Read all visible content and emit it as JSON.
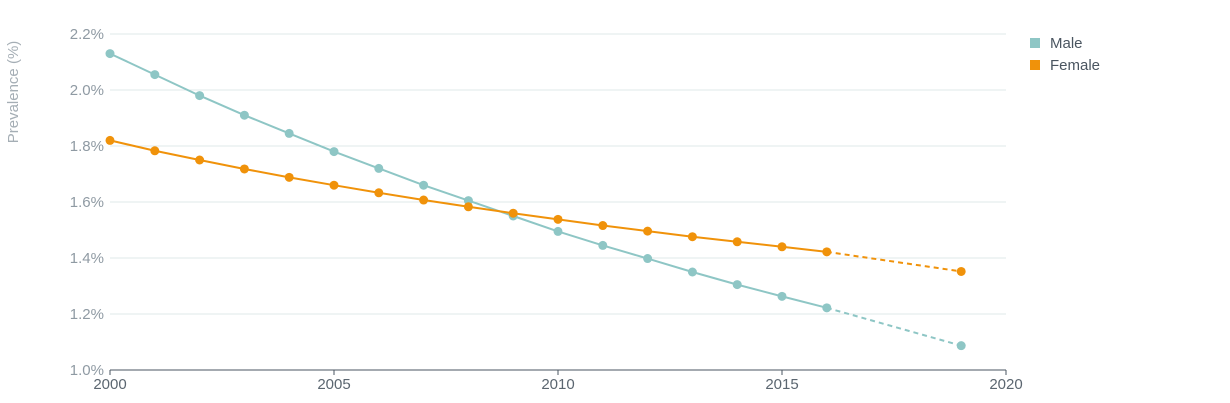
{
  "chart_data": {
    "type": "line",
    "ylabel": "Prevalence (%)",
    "xlim": [
      2000,
      2020
    ],
    "ylim": [
      1.0,
      2.2
    ],
    "x_ticks": [
      2000,
      2005,
      2010,
      2015,
      2020
    ],
    "y_ticks": [
      1.0,
      1.2,
      1.4,
      1.6,
      1.8,
      2.0,
      2.2
    ],
    "y_tick_labels": [
      "1.0%",
      "1.2%",
      "1.4%",
      "1.6%",
      "1.8%",
      "2.0%",
      "2.2%"
    ],
    "grid": true,
    "legend_position": "top-right",
    "series": [
      {
        "name": "Male",
        "color": "#8ec6c5",
        "x": [
          2000,
          2001,
          2002,
          2003,
          2004,
          2005,
          2006,
          2007,
          2008,
          2009,
          2010,
          2011,
          2012,
          2013,
          2014,
          2015,
          2016,
          2019
        ],
        "values": [
          2.13,
          2.055,
          1.98,
          1.91,
          1.845,
          1.78,
          1.72,
          1.66,
          1.605,
          1.55,
          1.495,
          1.445,
          1.398,
          1.35,
          1.305,
          1.263,
          1.222,
          1.087
        ],
        "projected_from_x": 2016
      },
      {
        "name": "Female",
        "color": "#f0920a",
        "x": [
          2000,
          2001,
          2002,
          2003,
          2004,
          2005,
          2006,
          2007,
          2008,
          2009,
          2010,
          2011,
          2012,
          2013,
          2014,
          2015,
          2016,
          2019
        ],
        "values": [
          1.82,
          1.783,
          1.75,
          1.718,
          1.688,
          1.66,
          1.633,
          1.607,
          1.583,
          1.56,
          1.538,
          1.516,
          1.496,
          1.476,
          1.458,
          1.44,
          1.422,
          1.352
        ],
        "projected_from_x": 2016
      }
    ]
  }
}
